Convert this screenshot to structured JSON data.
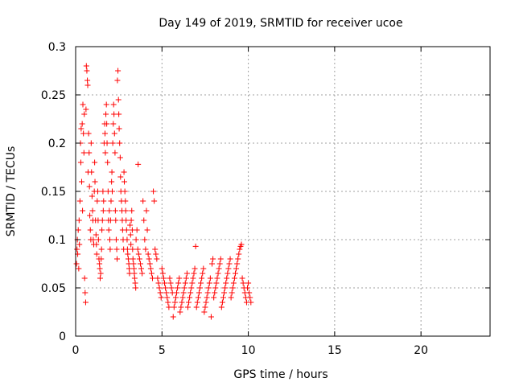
{
  "chart_data": {
    "type": "scatter",
    "title": "Day 149 of 2019, SRMTID for receiver ucoe",
    "xlabel": "GPS time / hours",
    "ylabel": "SRMTID / TECUs",
    "xlim": [
      0,
      24
    ],
    "ylim": [
      0,
      0.3
    ],
    "x_ticks": [
      0,
      5,
      10,
      15,
      20
    ],
    "x_tick_labels": [
      "0",
      "5",
      "10",
      "15",
      "20"
    ],
    "y_ticks": [
      0,
      0.05,
      0.1,
      0.15,
      0.2,
      0.25,
      0.3
    ],
    "y_tick_labels": [
      "0",
      "0.05",
      "0.1",
      "0.15",
      "0.2",
      "0.25",
      "0.3"
    ],
    "grid": true,
    "marker": "+",
    "color": "#ff0000",
    "series": [
      {
        "points": [
          [
            0.05,
            0.075
          ],
          [
            0.08,
            0.09
          ],
          [
            0.1,
            0.1
          ],
          [
            0.12,
            0.085
          ],
          [
            0.15,
            0.11
          ],
          [
            0.18,
            0.07
          ],
          [
            0.2,
            0.12
          ],
          [
            0.22,
            0.095
          ],
          [
            0.25,
            0.14
          ],
          [
            0.28,
            0.2
          ],
          [
            0.3,
            0.18
          ],
          [
            0.32,
            0.215
          ],
          [
            0.35,
            0.16
          ],
          [
            0.38,
            0.22
          ],
          [
            0.4,
            0.13
          ],
          [
            0.42,
            0.24
          ],
          [
            0.45,
            0.21
          ],
          [
            0.48,
            0.19
          ],
          [
            0.5,
            0.23
          ],
          [
            0.52,
            0.06
          ],
          [
            0.55,
            0.045
          ],
          [
            0.58,
            0.035
          ],
          [
            0.6,
            0.235
          ],
          [
            0.62,
            0.28
          ],
          [
            0.65,
            0.275
          ],
          [
            0.68,
            0.265
          ],
          [
            0.7,
            0.26
          ],
          [
            0.72,
            0.17
          ],
          [
            0.75,
            0.21
          ],
          [
            0.78,
            0.19
          ],
          [
            0.8,
            0.155
          ],
          [
            0.82,
            0.125
          ],
          [
            0.85,
            0.11
          ],
          [
            0.88,
            0.1
          ],
          [
            0.9,
            0.2
          ],
          [
            0.92,
            0.17
          ],
          [
            0.95,
            0.145
          ],
          [
            0.98,
            0.13
          ],
          [
            1.0,
            0.12
          ],
          [
            1.02,
            0.1
          ],
          [
            1.05,
            0.095
          ],
          [
            1.08,
            0.15
          ],
          [
            1.1,
            0.18
          ],
          [
            1.12,
            0.16
          ],
          [
            1.15,
            0.12
          ],
          [
            1.18,
            0.105
          ],
          [
            1.2,
            0.095
          ],
          [
            1.22,
            0.085
          ],
          [
            1.25,
            0.14
          ],
          [
            1.28,
            0.15
          ],
          [
            1.3,
            0.12
          ],
          [
            1.32,
            0.1
          ],
          [
            1.35,
            0.08
          ],
          [
            1.38,
            0.075
          ],
          [
            1.4,
            0.07
          ],
          [
            1.42,
            0.06
          ],
          [
            1.45,
            0.065
          ],
          [
            1.48,
            0.08
          ],
          [
            1.5,
            0.09
          ],
          [
            1.52,
            0.11
          ],
          [
            1.55,
            0.12
          ],
          [
            1.58,
            0.15
          ],
          [
            1.6,
            0.13
          ],
          [
            1.62,
            0.14
          ],
          [
            1.65,
            0.2
          ],
          [
            1.68,
            0.22
          ],
          [
            1.7,
            0.21
          ],
          [
            1.72,
            0.19
          ],
          [
            1.75,
            0.23
          ],
          [
            1.78,
            0.24
          ],
          [
            1.8,
            0.22
          ],
          [
            1.82,
            0.2
          ],
          [
            1.85,
            0.18
          ],
          [
            1.88,
            0.15
          ],
          [
            1.9,
            0.12
          ],
          [
            1.92,
            0.11
          ],
          [
            1.95,
            0.13
          ],
          [
            1.98,
            0.1
          ],
          [
            2.0,
            0.09
          ],
          [
            2.02,
            0.12
          ],
          [
            2.05,
            0.14
          ],
          [
            2.08,
            0.16
          ],
          [
            2.1,
            0.17
          ],
          [
            2.12,
            0.15
          ],
          [
            2.15,
            0.2
          ],
          [
            2.18,
            0.22
          ],
          [
            2.2,
            0.24
          ],
          [
            2.22,
            0.23
          ],
          [
            2.25,
            0.21
          ],
          [
            2.28,
            0.19
          ],
          [
            2.3,
            0.13
          ],
          [
            2.32,
            0.12
          ],
          [
            2.35,
            0.1
          ],
          [
            2.38,
            0.09
          ],
          [
            2.4,
            0.08
          ],
          [
            2.42,
            0.265
          ],
          [
            2.45,
            0.275
          ],
          [
            2.48,
            0.245
          ],
          [
            2.5,
            0.23
          ],
          [
            2.52,
            0.215
          ],
          [
            2.55,
            0.2
          ],
          [
            2.58,
            0.185
          ],
          [
            2.6,
            0.165
          ],
          [
            2.62,
            0.15
          ],
          [
            2.65,
            0.14
          ],
          [
            2.68,
            0.13
          ],
          [
            2.7,
            0.12
          ],
          [
            2.72,
            0.11
          ],
          [
            2.75,
            0.1
          ],
          [
            2.78,
            0.09
          ],
          [
            2.8,
            0.17
          ],
          [
            2.82,
            0.16
          ],
          [
            2.85,
            0.15
          ],
          [
            2.88,
            0.14
          ],
          [
            2.9,
            0.13
          ],
          [
            2.92,
            0.12
          ],
          [
            2.95,
            0.11
          ],
          [
            2.98,
            0.1
          ],
          [
            3.0,
            0.09
          ],
          [
            3.02,
            0.085
          ],
          [
            3.05,
            0.08
          ],
          [
            3.08,
            0.075
          ],
          [
            3.1,
            0.07
          ],
          [
            3.12,
            0.065
          ],
          [
            3.15,
            0.115
          ],
          [
            3.18,
            0.105
          ],
          [
            3.2,
            0.095
          ],
          [
            3.22,
            0.12
          ],
          [
            3.25,
            0.13
          ],
          [
            3.28,
            0.11
          ],
          [
            3.3,
            0.09
          ],
          [
            3.32,
            0.08
          ],
          [
            3.35,
            0.075
          ],
          [
            3.38,
            0.07
          ],
          [
            3.4,
            0.065
          ],
          [
            3.42,
            0.06
          ],
          [
            3.45,
            0.055
          ],
          [
            3.48,
            0.05
          ],
          [
            3.5,
            0.1
          ],
          [
            3.55,
            0.11
          ],
          [
            3.6,
            0.09
          ],
          [
            3.62,
            0.178
          ],
          [
            3.65,
            0.085
          ],
          [
            3.7,
            0.08
          ],
          [
            3.75,
            0.075
          ],
          [
            3.8,
            0.07
          ],
          [
            3.85,
            0.065
          ],
          [
            3.9,
            0.14
          ],
          [
            3.95,
            0.12
          ],
          [
            4.0,
            0.1
          ],
          [
            4.05,
            0.09
          ],
          [
            4.1,
            0.13
          ],
          [
            4.15,
            0.11
          ],
          [
            4.2,
            0.085
          ],
          [
            4.25,
            0.08
          ],
          [
            4.3,
            0.075
          ],
          [
            4.35,
            0.07
          ],
          [
            4.4,
            0.065
          ],
          [
            4.45,
            0.06
          ],
          [
            4.5,
            0.15
          ],
          [
            4.55,
            0.14
          ],
          [
            4.6,
            0.09
          ],
          [
            4.65,
            0.085
          ],
          [
            4.7,
            0.08
          ],
          [
            4.75,
            0.06
          ],
          [
            4.8,
            0.055
          ],
          [
            4.85,
            0.05
          ],
          [
            4.9,
            0.045
          ],
          [
            4.95,
            0.04
          ],
          [
            5.0,
            0.07
          ],
          [
            5.05,
            0.065
          ],
          [
            5.1,
            0.06
          ],
          [
            5.15,
            0.055
          ],
          [
            5.2,
            0.05
          ],
          [
            5.25,
            0.045
          ],
          [
            5.3,
            0.04
          ],
          [
            5.35,
            0.035
          ],
          [
            5.4,
            0.03
          ],
          [
            5.45,
            0.06
          ],
          [
            5.5,
            0.055
          ],
          [
            5.55,
            0.05
          ],
          [
            5.6,
            0.045
          ],
          [
            5.65,
            0.02
          ],
          [
            5.7,
            0.03
          ],
          [
            5.75,
            0.035
          ],
          [
            5.8,
            0.04
          ],
          [
            5.85,
            0.045
          ],
          [
            5.9,
            0.05
          ],
          [
            5.95,
            0.055
          ],
          [
            6.0,
            0.06
          ],
          [
            6.05,
            0.025
          ],
          [
            6.1,
            0.03
          ],
          [
            6.15,
            0.035
          ],
          [
            6.2,
            0.04
          ],
          [
            6.25,
            0.045
          ],
          [
            6.3,
            0.05
          ],
          [
            6.35,
            0.055
          ],
          [
            6.4,
            0.06
          ],
          [
            6.45,
            0.065
          ],
          [
            6.5,
            0.03
          ],
          [
            6.55,
            0.035
          ],
          [
            6.6,
            0.04
          ],
          [
            6.65,
            0.045
          ],
          [
            6.7,
            0.05
          ],
          [
            6.75,
            0.055
          ],
          [
            6.8,
            0.06
          ],
          [
            6.85,
            0.065
          ],
          [
            6.9,
            0.07
          ],
          [
            6.95,
            0.093
          ],
          [
            7.0,
            0.03
          ],
          [
            7.05,
            0.035
          ],
          [
            7.1,
            0.04
          ],
          [
            7.15,
            0.045
          ],
          [
            7.2,
            0.05
          ],
          [
            7.25,
            0.055
          ],
          [
            7.3,
            0.06
          ],
          [
            7.35,
            0.065
          ],
          [
            7.4,
            0.07
          ],
          [
            7.45,
            0.025
          ],
          [
            7.5,
            0.03
          ],
          [
            7.55,
            0.035
          ],
          [
            7.6,
            0.04
          ],
          [
            7.65,
            0.045
          ],
          [
            7.7,
            0.05
          ],
          [
            7.75,
            0.055
          ],
          [
            7.8,
            0.06
          ],
          [
            7.85,
            0.02
          ],
          [
            7.9,
            0.075
          ],
          [
            7.95,
            0.08
          ],
          [
            8.0,
            0.04
          ],
          [
            8.05,
            0.045
          ],
          [
            8.1,
            0.05
          ],
          [
            8.15,
            0.055
          ],
          [
            8.2,
            0.06
          ],
          [
            8.25,
            0.065
          ],
          [
            8.3,
            0.07
          ],
          [
            8.35,
            0.075
          ],
          [
            8.4,
            0.08
          ],
          [
            8.45,
            0.03
          ],
          [
            8.5,
            0.035
          ],
          [
            8.55,
            0.04
          ],
          [
            8.6,
            0.045
          ],
          [
            8.65,
            0.05
          ],
          [
            8.7,
            0.055
          ],
          [
            8.75,
            0.06
          ],
          [
            8.8,
            0.065
          ],
          [
            8.85,
            0.07
          ],
          [
            8.9,
            0.075
          ],
          [
            8.95,
            0.08
          ],
          [
            9.0,
            0.04
          ],
          [
            9.05,
            0.045
          ],
          [
            9.1,
            0.05
          ],
          [
            9.15,
            0.055
          ],
          [
            9.2,
            0.06
          ],
          [
            9.25,
            0.065
          ],
          [
            9.3,
            0.07
          ],
          [
            9.35,
            0.075
          ],
          [
            9.4,
            0.08
          ],
          [
            9.45,
            0.085
          ],
          [
            9.5,
            0.09
          ],
          [
            9.55,
            0.093
          ],
          [
            9.6,
            0.095
          ],
          [
            9.65,
            0.06
          ],
          [
            9.7,
            0.055
          ],
          [
            9.75,
            0.05
          ],
          [
            9.8,
            0.045
          ],
          [
            9.85,
            0.04
          ],
          [
            9.9,
            0.035
          ],
          [
            9.95,
            0.05
          ],
          [
            10.0,
            0.055
          ],
          [
            10.05,
            0.045
          ],
          [
            10.1,
            0.04
          ],
          [
            10.15,
            0.035
          ]
        ]
      }
    ]
  }
}
